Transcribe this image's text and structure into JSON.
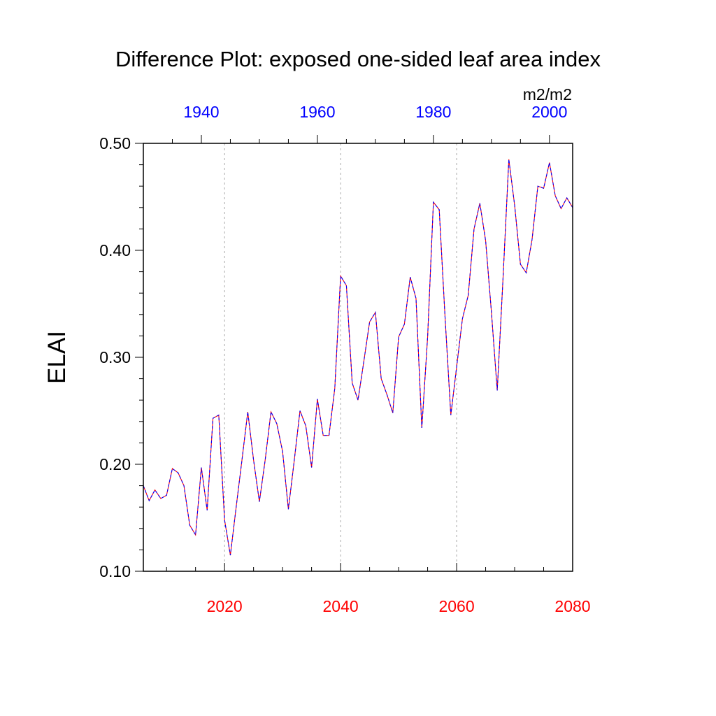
{
  "chart_data": {
    "type": "line",
    "title": "Difference Plot: exposed one-sided leaf area index",
    "ylabel": "ELAI",
    "units": "m2/m2",
    "ylim": [
      0.1,
      0.5
    ],
    "yticks": [
      0.1,
      0.2,
      0.3,
      0.4,
      0.5
    ],
    "ytick_labels": [
      "0.10",
      "0.20",
      "0.30",
      "0.40",
      "0.50"
    ],
    "bottom_axis": {
      "xlim": [
        2006,
        2080
      ],
      "ticks": [
        2020,
        2040,
        2060,
        2080
      ],
      "tick_labels": [
        "2020",
        "2040",
        "2060",
        "2080"
      ],
      "color": "#ff0000"
    },
    "top_axis": {
      "xlim": [
        1930,
        2004
      ],
      "ticks": [
        1940,
        1960,
        1980,
        2000
      ],
      "tick_labels": [
        "1940",
        "1960",
        "1980",
        "2000"
      ],
      "color": "#0000ff"
    },
    "grid": "dotted vertical lines at major x ticks",
    "series": [
      {
        "color": "#ff0000",
        "x": [
          2006,
          2007,
          2008,
          2009,
          2010,
          2011,
          2012,
          2013,
          2014,
          2015,
          2016,
          2017,
          2018,
          2019,
          2020,
          2021,
          2022,
          2023,
          2024,
          2025,
          2026,
          2027,
          2028,
          2029,
          2030,
          2031,
          2032,
          2033,
          2034,
          2035,
          2036,
          2037,
          2038,
          2039,
          2040,
          2041,
          2042,
          2043,
          2044,
          2045,
          2046,
          2047,
          2048,
          2049,
          2050,
          2051,
          2052,
          2053,
          2054,
          2055,
          2056,
          2057,
          2058,
          2059,
          2060,
          2061,
          2062,
          2063,
          2064,
          2065,
          2066,
          2067,
          2068,
          2069,
          2070,
          2071,
          2072,
          2073,
          2074,
          2075,
          2076,
          2077,
          2078,
          2079,
          2080
        ],
        "values": [
          0.18,
          0.166,
          0.176,
          0.168,
          0.171,
          0.196,
          0.192,
          0.18,
          0.143,
          0.134,
          0.197,
          0.157,
          0.243,
          0.246,
          0.148,
          0.115,
          0.16,
          0.204,
          0.249,
          0.204,
          0.165,
          0.204,
          0.249,
          0.238,
          0.212,
          0.158,
          0.203,
          0.25,
          0.236,
          0.197,
          0.261,
          0.227,
          0.227,
          0.271,
          0.376,
          0.367,
          0.276,
          0.26,
          0.296,
          0.333,
          0.342,
          0.28,
          0.265,
          0.248,
          0.319,
          0.331,
          0.375,
          0.355,
          0.234,
          0.319,
          0.445,
          0.438,
          0.338,
          0.246,
          0.291,
          0.336,
          0.358,
          0.42,
          0.444,
          0.409,
          0.342,
          0.269,
          0.374,
          0.485,
          0.442,
          0.387,
          0.379,
          0.41,
          0.46,
          0.458,
          0.482,
          0.451,
          0.439,
          0.449,
          0.44
        ]
      },
      {
        "color": "#0000ff",
        "x": [
          1930,
          1931,
          1932,
          1933,
          1934,
          1935,
          1936,
          1937,
          1938,
          1939,
          1940,
          1941,
          1942,
          1943,
          1944,
          1945,
          1946,
          1947,
          1948,
          1949,
          1950,
          1951,
          1952,
          1953,
          1954,
          1955,
          1956,
          1957,
          1958,
          1959,
          1960,
          1961,
          1962,
          1963,
          1964,
          1965,
          1966,
          1967,
          1968,
          1969,
          1970,
          1971,
          1972,
          1973,
          1974,
          1975,
          1976,
          1977,
          1978,
          1979,
          1980,
          1981,
          1982,
          1983,
          1984,
          1985,
          1986,
          1987,
          1988,
          1989,
          1990,
          1991,
          1992,
          1993,
          1994,
          1995,
          1996,
          1997,
          1998,
          1999,
          2000,
          2001,
          2002,
          2003,
          2004
        ],
        "values": [
          0.18,
          0.166,
          0.176,
          0.168,
          0.171,
          0.196,
          0.192,
          0.18,
          0.143,
          0.134,
          0.197,
          0.157,
          0.243,
          0.246,
          0.148,
          0.115,
          0.16,
          0.204,
          0.249,
          0.204,
          0.165,
          0.204,
          0.249,
          0.238,
          0.212,
          0.158,
          0.203,
          0.25,
          0.236,
          0.197,
          0.261,
          0.227,
          0.227,
          0.271,
          0.376,
          0.367,
          0.276,
          0.26,
          0.296,
          0.333,
          0.342,
          0.28,
          0.265,
          0.248,
          0.319,
          0.331,
          0.375,
          0.355,
          0.234,
          0.319,
          0.445,
          0.438,
          0.338,
          0.246,
          0.291,
          0.336,
          0.358,
          0.42,
          0.444,
          0.409,
          0.342,
          0.269,
          0.374,
          0.485,
          0.442,
          0.387,
          0.379,
          0.41,
          0.46,
          0.458,
          0.482,
          0.451,
          0.439,
          0.449,
          0.44
        ]
      }
    ]
  }
}
